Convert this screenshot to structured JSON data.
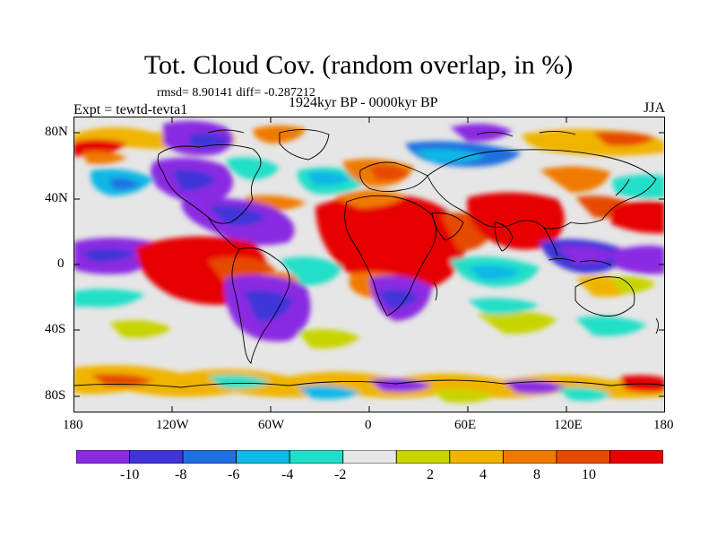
{
  "title": "Tot. Cloud Cov. (random overlap, in %)",
  "stats": "rmsd= 8.90141 diff= -0.287212",
  "period": "1924kyr BP - 0000kyr BP",
  "experiment": "Expt = tewtd-tevta1",
  "season": "JJA",
  "map": {
    "lat_ticks": [
      "80N",
      "40N",
      "0",
      "40S",
      "80S"
    ],
    "lon_ticks": [
      "180",
      "120W",
      "60W",
      "0",
      "60E",
      "120E",
      "180"
    ],
    "background_color": "#e6e6e6",
    "coastline_color": "#000000"
  },
  "colorbar": {
    "labels": [
      "-10",
      "-8",
      "-6",
      "-4",
      "-2",
      "2",
      "4",
      "8",
      "10"
    ],
    "colors": [
      "#8a2be2",
      "#3f34d8",
      "#1f6fe0",
      "#10b8e6",
      "#20dfc8",
      "#e6e6e6",
      "#c8d400",
      "#f0b400",
      "#f07a00",
      "#e64a00",
      "#e60000"
    ]
  }
}
